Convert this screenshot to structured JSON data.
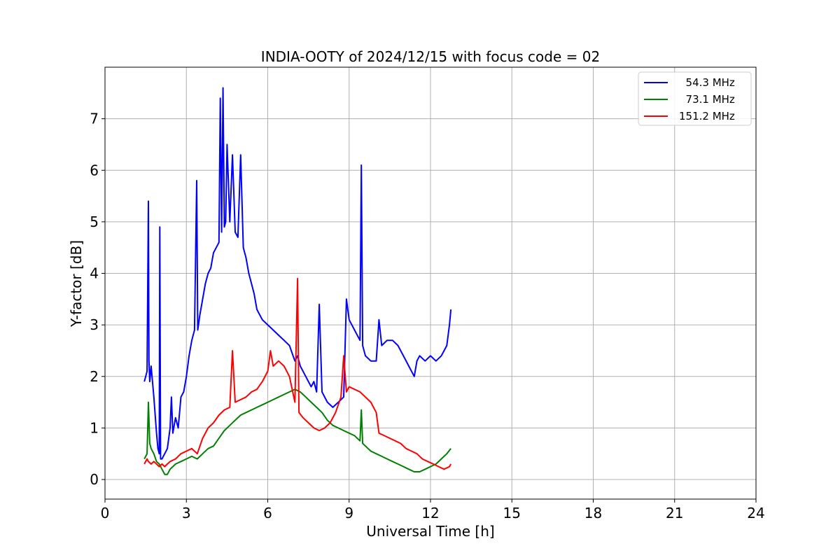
{
  "chart_data": {
    "type": "line",
    "title": "INDIA-OOTY of 2024/12/15 with focus code = 02",
    "xlabel": "Universal Time [h]",
    "ylabel": "Y-factor [dB]",
    "xlim": [
      0,
      24
    ],
    "ylim": [
      -0.38,
      8.0
    ],
    "xticks": [
      0,
      3,
      6,
      9,
      12,
      15,
      18,
      21,
      24
    ],
    "yticks": [
      0,
      1,
      2,
      3,
      4,
      5,
      6,
      7
    ],
    "grid": true,
    "legend": "top-right",
    "series": [
      {
        "name": "  54.3 MHz",
        "color": "#0000ff",
        "x": [
          1.45,
          1.55,
          1.6,
          1.62,
          1.65,
          1.7,
          1.8,
          1.9,
          1.95,
          2.0,
          2.02,
          2.05,
          2.1,
          2.2,
          2.3,
          2.4,
          2.45,
          2.5,
          2.6,
          2.7,
          2.8,
          2.9,
          3.0,
          3.1,
          3.2,
          3.3,
          3.38,
          3.42,
          3.5,
          3.6,
          3.7,
          3.8,
          3.9,
          4.0,
          4.1,
          4.2,
          4.25,
          4.3,
          4.35,
          4.4,
          4.45,
          4.5,
          4.6,
          4.7,
          4.8,
          4.9,
          5.0,
          5.1,
          5.2,
          5.3,
          5.4,
          5.5,
          5.6,
          5.8,
          6.0,
          6.2,
          6.4,
          6.6,
          6.8,
          7.0,
          7.1,
          7.2,
          7.4,
          7.6,
          7.7,
          7.8,
          7.9,
          8.0,
          8.2,
          8.4,
          8.6,
          8.8,
          8.9,
          9.0,
          9.2,
          9.4,
          9.45,
          9.5,
          9.6,
          9.8,
          10.0,
          10.1,
          10.2,
          10.4,
          10.6,
          10.8,
          11.0,
          11.2,
          11.4,
          11.5,
          11.6,
          11.8,
          12.0,
          12.2,
          12.4,
          12.5,
          12.6,
          12.7,
          12.75
        ],
        "y": [
          1.9,
          2.1,
          5.4,
          2.3,
          1.9,
          2.2,
          1.6,
          0.9,
          0.6,
          0.5,
          4.9,
          0.4,
          0.4,
          0.5,
          0.6,
          1.0,
          1.6,
          0.9,
          1.2,
          1.0,
          1.6,
          1.7,
          2.0,
          2.4,
          2.7,
          2.9,
          5.8,
          2.9,
          3.2,
          3.5,
          3.8,
          4.0,
          4.1,
          4.4,
          4.5,
          4.6,
          7.4,
          4.8,
          7.6,
          4.9,
          5.0,
          6.5,
          5.0,
          6.3,
          4.8,
          4.7,
          6.3,
          4.5,
          4.3,
          4.0,
          3.8,
          3.6,
          3.3,
          3.1,
          3.0,
          2.9,
          2.8,
          2.7,
          2.6,
          2.3,
          2.4,
          2.2,
          2.0,
          1.8,
          1.9,
          1.7,
          3.4,
          1.7,
          1.5,
          1.4,
          1.5,
          1.6,
          3.5,
          3.1,
          2.9,
          2.7,
          6.1,
          2.6,
          2.4,
          2.3,
          2.3,
          3.1,
          2.6,
          2.7,
          2.7,
          2.6,
          2.4,
          2.2,
          2.0,
          2.3,
          2.4,
          2.3,
          2.4,
          2.3,
          2.4,
          2.5,
          2.6,
          3.0,
          3.3
        ]
      },
      {
        "name": "  73.1 MHz",
        "color": "#008000",
        "x": [
          1.45,
          1.55,
          1.6,
          1.65,
          1.7,
          1.8,
          1.9,
          2.0,
          2.1,
          2.2,
          2.3,
          2.4,
          2.6,
          2.8,
          3.0,
          3.2,
          3.4,
          3.6,
          3.8,
          4.0,
          4.2,
          4.4,
          4.6,
          4.8,
          5.0,
          5.2,
          5.4,
          5.6,
          5.8,
          6.0,
          6.2,
          6.4,
          6.6,
          6.8,
          7.0,
          7.2,
          7.4,
          7.6,
          7.8,
          8.0,
          8.2,
          8.4,
          8.6,
          8.8,
          9.0,
          9.2,
          9.4,
          9.45,
          9.5,
          9.6,
          9.8,
          10.0,
          10.2,
          10.4,
          10.6,
          10.8,
          11.0,
          11.2,
          11.4,
          11.6,
          11.8,
          12.0,
          12.2,
          12.4,
          12.6,
          12.75
        ],
        "y": [
          0.4,
          0.5,
          1.5,
          0.7,
          0.6,
          0.5,
          0.35,
          0.3,
          0.2,
          0.1,
          0.1,
          0.2,
          0.3,
          0.35,
          0.4,
          0.45,
          0.4,
          0.5,
          0.6,
          0.65,
          0.8,
          0.95,
          1.05,
          1.15,
          1.25,
          1.3,
          1.35,
          1.4,
          1.45,
          1.5,
          1.55,
          1.6,
          1.65,
          1.7,
          1.75,
          1.7,
          1.6,
          1.5,
          1.4,
          1.3,
          1.15,
          1.05,
          1.0,
          0.95,
          0.9,
          0.85,
          0.75,
          1.35,
          0.7,
          0.65,
          0.55,
          0.5,
          0.45,
          0.4,
          0.35,
          0.3,
          0.25,
          0.2,
          0.15,
          0.15,
          0.2,
          0.25,
          0.3,
          0.4,
          0.5,
          0.6
        ]
      },
      {
        "name": "151.2 MHz",
        "color": "#ff0000",
        "x": [
          1.45,
          1.55,
          1.6,
          1.7,
          1.8,
          1.9,
          2.0,
          2.1,
          2.2,
          2.3,
          2.4,
          2.6,
          2.8,
          3.0,
          3.2,
          3.4,
          3.6,
          3.8,
          4.0,
          4.2,
          4.4,
          4.6,
          4.7,
          4.8,
          5.0,
          5.2,
          5.4,
          5.6,
          5.8,
          6.0,
          6.1,
          6.2,
          6.4,
          6.6,
          6.8,
          7.0,
          7.1,
          7.15,
          7.3,
          7.5,
          7.7,
          7.9,
          8.1,
          8.3,
          8.5,
          8.7,
          8.8,
          8.9,
          9.0,
          9.2,
          9.4,
          9.6,
          9.8,
          10.0,
          10.1,
          10.3,
          10.5,
          10.7,
          10.9,
          11.1,
          11.3,
          11.5,
          11.7,
          11.9,
          12.1,
          12.3,
          12.5,
          12.7,
          12.75
        ],
        "y": [
          0.3,
          0.4,
          0.35,
          0.3,
          0.35,
          0.3,
          0.25,
          0.3,
          0.25,
          0.3,
          0.35,
          0.4,
          0.5,
          0.55,
          0.6,
          0.5,
          0.8,
          1.0,
          1.1,
          1.25,
          1.35,
          1.4,
          2.5,
          1.5,
          1.55,
          1.6,
          1.7,
          1.75,
          1.9,
          2.1,
          2.5,
          2.2,
          2.3,
          2.2,
          2.0,
          1.5,
          3.9,
          1.3,
          1.2,
          1.1,
          1.0,
          0.95,
          1.0,
          1.1,
          1.3,
          1.6,
          2.4,
          1.7,
          1.8,
          1.75,
          1.7,
          1.6,
          1.5,
          1.3,
          0.9,
          0.85,
          0.8,
          0.75,
          0.7,
          0.6,
          0.55,
          0.5,
          0.4,
          0.35,
          0.3,
          0.25,
          0.2,
          0.25,
          0.3
        ]
      }
    ]
  }
}
